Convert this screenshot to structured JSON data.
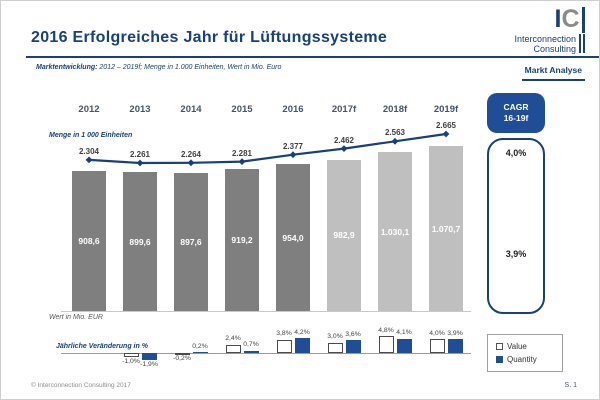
{
  "colors": {
    "navy": "#17407E",
    "blue": "#1F4E96",
    "bar_dark": "#7F7F7F",
    "bar_light": "#BFBFBF"
  },
  "header": {
    "title": "2016 Erfolgreiches Jahr für Lüftungssysteme",
    "subtitle_label": "Marktentwicklung:",
    "subtitle_text": " 2012 – 2019f; Menge in 1.000 Einheiten, Wert in Mio. Euro",
    "logo": {
      "letter_i": "I",
      "letter_c": "C",
      "name_line1": "Interconnection",
      "name_line2": "Consulting"
    },
    "tagline": "Markt Analyse"
  },
  "chart_data": {
    "type": "combo-bar-line",
    "categories": [
      "2012",
      "2013",
      "2014",
      "2015",
      "2016",
      "2017f",
      "2018f",
      "2019f"
    ],
    "series": [
      {
        "name": "Value (Wert in Mio. EUR)",
        "chart": "bar",
        "values": [
          908.6,
          899.6,
          897.6,
          919.2,
          954.0,
          982.9,
          1030.1,
          1070.7
        ],
        "labels": [
          "908,6",
          "899,6",
          "897,6",
          "919,2",
          "954,0",
          "982,9",
          "1.030,1",
          "1.070,7"
        ],
        "forecast_from_index": 5
      },
      {
        "name": "Quantity (Menge in 1 000 Einheiten)",
        "chart": "line",
        "values": [
          2304,
          2261,
          2264,
          2281,
          2377,
          2462,
          2563,
          2665
        ],
        "labels": [
          "2.304",
          "2.261",
          "2.264",
          "2.281",
          "2.377",
          "2.462",
          "2.563",
          "2.665"
        ]
      }
    ],
    "axis_label_line": "Menge in 1 000 Einheiten",
    "axis_label_bar": "Wert in Mio. EUR",
    "yoy": {
      "label": "Jährliche Veränderung in %",
      "categories": [
        "2013",
        "2014",
        "2015",
        "2016",
        "2017f",
        "2018f",
        "2019f"
      ],
      "series": [
        {
          "name": "Value",
          "values": [
            -1.0,
            -0.2,
            2.4,
            3.8,
            3.0,
            4.8,
            4.0
          ],
          "labels": [
            "-1,0%",
            "-0,2%",
            "2,4%",
            "3,8%",
            "3,0%",
            "4,8%",
            "4,0%"
          ]
        },
        {
          "name": "Quantity",
          "values": [
            -1.9,
            0.2,
            0.7,
            4.2,
            3.6,
            4.1,
            3.9
          ],
          "labels": [
            "-1,9%",
            "0,2%",
            "0,7%",
            "4,2%",
            "3,6%",
            "4,1%",
            "3,9%"
          ]
        }
      ]
    },
    "legend": [
      {
        "label": "Value",
        "swatch": "outline"
      },
      {
        "label": "Quantity",
        "swatch": "blue"
      }
    ]
  },
  "cagr": {
    "line1": "CAGR",
    "line2": "16-19f",
    "quantity_pct": "4,0%",
    "value_pct": "3,9%"
  },
  "footer": {
    "copyright": "© Interconnection Consulting 2017",
    "page": "S. 1"
  }
}
